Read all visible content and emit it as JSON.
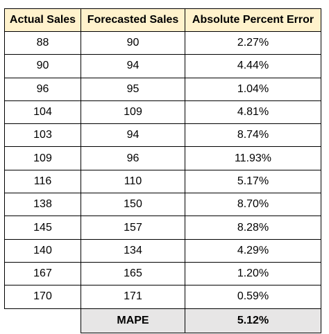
{
  "table": {
    "headers": [
      "Actual Sales",
      "Forecasted Sales",
      "Absolute Percent Error"
    ],
    "rows": [
      [
        "88",
        "90",
        "2.27%"
      ],
      [
        "90",
        "94",
        "4.44%"
      ],
      [
        "96",
        "95",
        "1.04%"
      ],
      [
        "104",
        "109",
        "4.81%"
      ],
      [
        "103",
        "94",
        "8.74%"
      ],
      [
        "109",
        "96",
        "11.93%"
      ],
      [
        "116",
        "110",
        "5.17%"
      ],
      [
        "138",
        "150",
        "8.70%"
      ],
      [
        "145",
        "157",
        "8.28%"
      ],
      [
        "140",
        "134",
        "4.29%"
      ],
      [
        "167",
        "165",
        "1.20%"
      ],
      [
        "170",
        "171",
        "0.59%"
      ]
    ],
    "summary": {
      "label": "MAPE",
      "value": "5.12%"
    }
  },
  "colors": {
    "header_fill": "#fff2cc",
    "summary_fill": "#e7e6e6",
    "border": "#000000"
  }
}
